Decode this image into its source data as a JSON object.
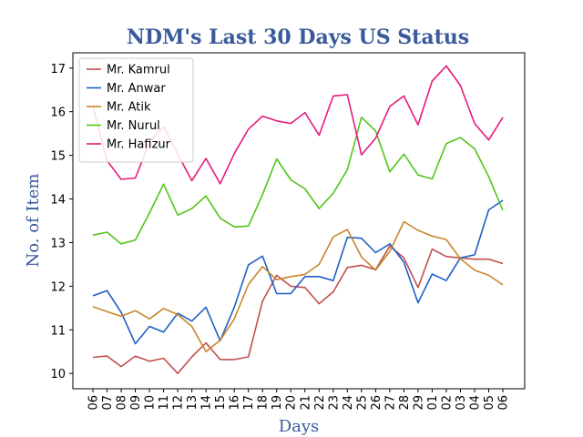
{
  "chart_data": {
    "type": "line",
    "title": "NDM's Last 30 Days US Status",
    "xlabel": "Days",
    "ylabel": "No. of Item",
    "title_color": "#3a5a9b",
    "x": [
      "06",
      "07",
      "08",
      "09",
      "10",
      "11",
      "12",
      "13",
      "14",
      "15",
      "16",
      "17",
      "18",
      "19",
      "20",
      "21",
      "22",
      "23",
      "24",
      "25",
      "26",
      "27",
      "28",
      "29",
      "01",
      "02",
      "03",
      "04",
      "05",
      "06"
    ],
    "ylim": [
      9.65,
      17.35
    ],
    "yticks": [
      10,
      11,
      12,
      13,
      14,
      15,
      16,
      17
    ],
    "grid": false,
    "legend_position": "top-left",
    "series": [
      {
        "name": "Mr. Kamrul",
        "color": "#c0504d",
        "values": [
          10.37,
          10.4,
          10.16,
          10.4,
          10.28,
          10.35,
          10.0,
          10.38,
          10.7,
          10.32,
          10.32,
          10.38,
          11.66,
          12.25,
          12.0,
          11.97,
          11.6,
          11.87,
          12.43,
          12.48,
          12.38,
          12.92,
          12.65,
          11.97,
          12.85,
          12.68,
          12.65,
          12.62,
          12.62,
          12.52
        ]
      },
      {
        "name": "Mr. Anwar",
        "color": "#1f5fc6",
        "values": [
          11.78,
          11.9,
          11.4,
          10.68,
          11.08,
          10.95,
          11.38,
          11.2,
          11.52,
          10.75,
          11.52,
          12.49,
          12.69,
          11.83,
          11.83,
          12.22,
          12.22,
          12.13,
          13.12,
          13.1,
          12.77,
          12.97,
          12.55,
          11.62,
          12.28,
          12.13,
          12.65,
          12.72,
          13.75,
          13.97
        ]
      },
      {
        "name": "Mr. Atik",
        "color": "#c8862a",
        "values": [
          11.53,
          11.42,
          11.31,
          11.44,
          11.25,
          11.49,
          11.35,
          11.08,
          10.5,
          10.76,
          11.25,
          12.04,
          12.45,
          12.15,
          12.22,
          12.27,
          12.5,
          13.13,
          13.3,
          12.67,
          12.37,
          12.8,
          13.48,
          13.28,
          13.15,
          13.07,
          12.63,
          12.37,
          12.25,
          12.03
        ]
      },
      {
        "name": "Mr. Nurul",
        "color": "#52c41a",
        "values": [
          13.17,
          13.24,
          12.97,
          13.06,
          13.68,
          14.34,
          13.63,
          13.78,
          14.07,
          13.56,
          13.36,
          13.38,
          14.1,
          14.92,
          14.44,
          14.23,
          13.78,
          14.13,
          14.67,
          15.87,
          15.56,
          14.62,
          15.03,
          14.55,
          14.46,
          15.27,
          15.41,
          15.15,
          14.51,
          13.74
        ]
      },
      {
        "name": "Mr. Hafizur",
        "color": "#e6197a",
        "values": [
          16.12,
          14.88,
          14.45,
          14.48,
          15.3,
          15.66,
          15.03,
          14.42,
          14.93,
          14.35,
          15.04,
          15.6,
          15.9,
          15.79,
          15.73,
          15.98,
          15.46,
          16.36,
          16.39,
          15.01,
          15.39,
          16.12,
          16.36,
          15.7,
          16.7,
          17.05,
          16.6,
          15.73,
          15.35,
          15.87
        ]
      }
    ]
  }
}
